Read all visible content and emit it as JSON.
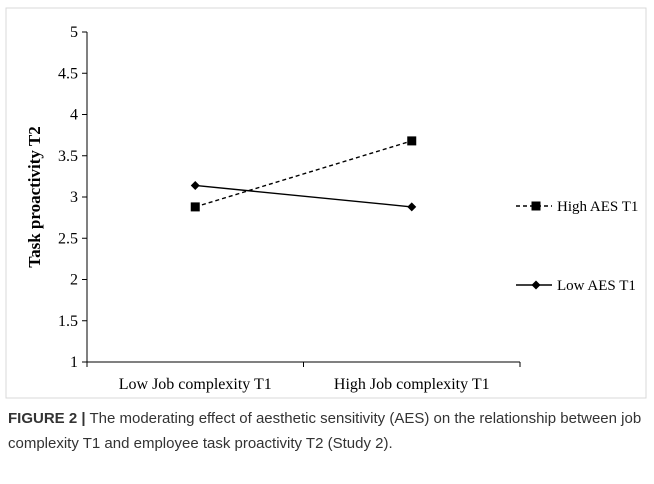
{
  "chart_data": {
    "type": "line",
    "categories": [
      "Low Job complexity T1",
      "High Job complexity T1"
    ],
    "series": [
      {
        "name": "High AES T1",
        "values": [
          2.88,
          3.68
        ],
        "line_style": "dashed",
        "marker": "square",
        "color": "#000000"
      },
      {
        "name": "Low AES T1",
        "values": [
          3.14,
          2.88
        ],
        "line_style": "solid",
        "marker": "diamond",
        "color": "#000000"
      }
    ],
    "ylabel": "Task proactivity T2",
    "xlabel": "",
    "ylim": [
      1,
      5
    ],
    "yticks": [
      "1",
      "1.5",
      "2",
      "2.5",
      "3",
      "3.5",
      "4",
      "4.5",
      "5"
    ],
    "grid": false,
    "legend_position": "right"
  },
  "caption": {
    "label": "FIGURE 2",
    "separator": "|",
    "text": "The moderating effect of aesthetic sensitivity (AES) on the relationship between job complexity T1 and employee task proactivity T2 (Study 2)."
  }
}
